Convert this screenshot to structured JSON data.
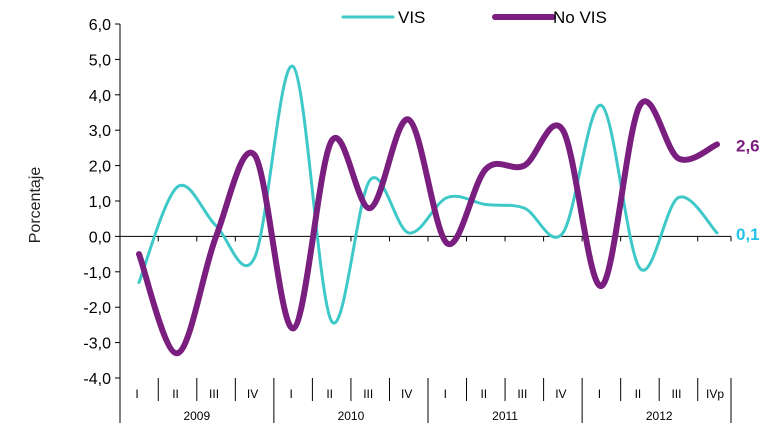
{
  "chart_data": {
    "type": "line",
    "title": "",
    "xlabel": "",
    "ylabel": "Porcentaje",
    "ylim": [
      -4.0,
      6.0
    ],
    "yticks": [
      "-4,0",
      "-3,0",
      "-2,0",
      "-1,0",
      "0,0",
      "1,0",
      "2,0",
      "3,0",
      "4,0",
      "5,0",
      "6,0"
    ],
    "quarters": [
      "I",
      "II",
      "III",
      "IV",
      "I",
      "II",
      "III",
      "IV",
      "I",
      "II",
      "III",
      "IV",
      "I",
      "II",
      "III",
      "IVp"
    ],
    "years": [
      "2009",
      "2010",
      "2011",
      "2012"
    ],
    "series": [
      {
        "name": "VIS",
        "color": "#3ec8c8",
        "values": [
          -1.3,
          1.4,
          0.3,
          -0.6,
          4.8,
          -2.4,
          1.6,
          0.1,
          1.1,
          0.9,
          0.8,
          0.1,
          3.7,
          -0.9,
          1.1,
          0.1
        ]
      },
      {
        "name": "No VIS",
        "color": "#7a1f7f",
        "values": [
          -0.5,
          -3.3,
          0.0,
          2.3,
          -2.6,
          2.7,
          0.8,
          3.3,
          -0.2,
          1.9,
          2.0,
          3.0,
          -1.4,
          3.7,
          2.2,
          2.6
        ]
      }
    ],
    "end_labels": [
      {
        "series": "No VIS",
        "text": "2,6",
        "color": "#7a1f7f"
      },
      {
        "series": "VIS",
        "text": "0,1",
        "color": "#22c3e6"
      }
    ],
    "legend_position": "top-center",
    "grid": false
  }
}
